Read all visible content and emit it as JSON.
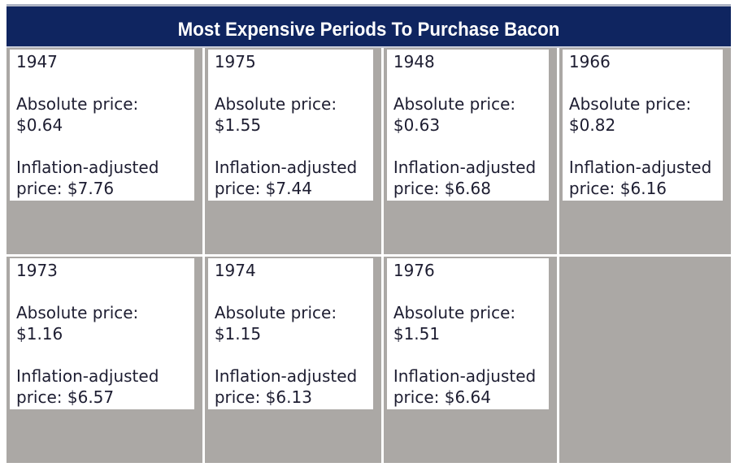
{
  "title": "Most Expensive Periods To Purchase Bacon",
  "colors": {
    "header_bg": "#0f2560",
    "header_text": "#ffffff",
    "cell_bg": "#aba8a5",
    "card_bg": "#ffffff",
    "card_text": "#1d1d31",
    "header_top_border": "#aeb4c4"
  },
  "cards": [
    {
      "year": "1947",
      "absolute": "Absolute price:\n$0.64",
      "adjusted": "Inflation-adjusted\nprice: $7.76"
    },
    {
      "year": "1975",
      "absolute": "Absolute price:\n$1.55",
      "adjusted": "Inflation-adjusted\nprice: $7.44"
    },
    {
      "year": "1948",
      "absolute": "Absolute price:\n$0.63",
      "adjusted": "Inflation-adjusted\nprice: $6.68"
    },
    {
      "year": "1966",
      "absolute": "Absolute price:\n$0.82",
      "adjusted": "Inflation-adjusted\nprice: $6.16"
    },
    {
      "year": "1973",
      "absolute": "Absolute price:\n$1.16",
      "adjusted": "Inflation-adjusted\nprice: $6.57"
    },
    {
      "year": "1974",
      "absolute": "Absolute price:\n$1.15",
      "adjusted": "Inflation-adjusted\nprice: $6.13"
    },
    {
      "year": "1976",
      "absolute": "Absolute price:\n$1.51",
      "adjusted": "Inflation-adjusted\nprice: $6.64"
    }
  ],
  "chart_data": {
    "type": "table",
    "title": "Most Expensive Periods To Purchase Bacon",
    "columns": [
      "year",
      "absolute_price_usd",
      "inflation_adjusted_price_usd"
    ],
    "rows": [
      [
        1947,
        0.64,
        7.76
      ],
      [
        1975,
        1.55,
        7.44
      ],
      [
        1948,
        0.63,
        6.68
      ],
      [
        1966,
        0.82,
        6.16
      ],
      [
        1973,
        1.16,
        6.57
      ],
      [
        1974,
        1.15,
        6.13
      ],
      [
        1976,
        1.51,
        6.64
      ]
    ],
    "layout": "4-column card grid, 2 rows, last cell empty"
  }
}
